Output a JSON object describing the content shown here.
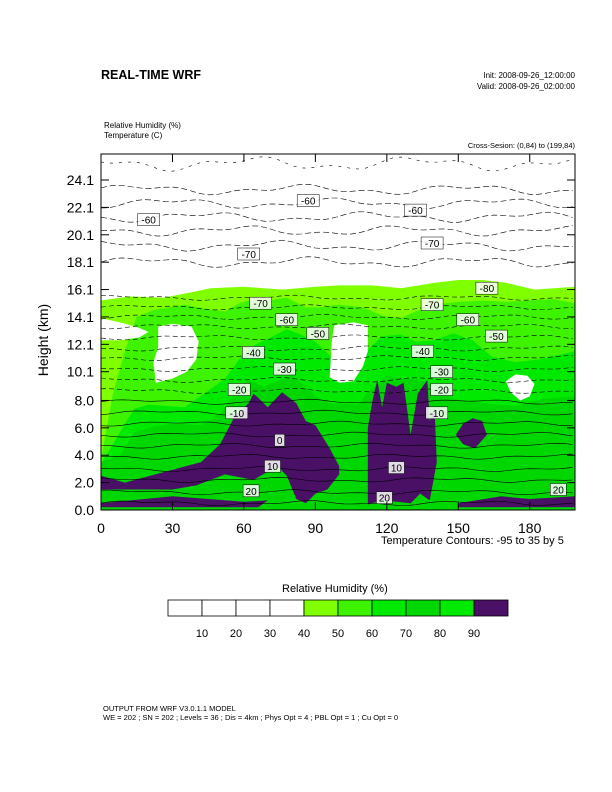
{
  "header": {
    "title": "REAL-TIME WRF",
    "init": "Init: 2008-09-26_12:00:00",
    "valid": "Valid: 2008-09-26_02:00:00",
    "field1": "Relative Humidity   (%)",
    "field2": "Temperature   (C)",
    "cross_section": "Cross-Sesion: (0,84) to (199,84)"
  },
  "chart_data": {
    "type": "heatmap",
    "ylabel": "Height (km)",
    "xlabel": "",
    "xlim": [
      0,
      199
    ],
    "ylim": [
      0,
      26
    ],
    "x_ticks": [
      "0",
      "30",
      "60",
      "90",
      "120",
      "150",
      "180"
    ],
    "x_tick_values": [
      0,
      30,
      60,
      90,
      120,
      150,
      180
    ],
    "y_ticks": [
      "0.0",
      "2.0",
      "4.0",
      "6.0",
      "8.0",
      "10.1",
      "12.1",
      "14.1",
      "16.1",
      "18.1",
      "20.1",
      "22.1",
      "24.1"
    ],
    "y_tick_values": [
      0.0,
      2.0,
      4.0,
      6.0,
      8.0,
      10.1,
      12.1,
      14.1,
      16.1,
      18.1,
      20.1,
      22.1,
      24.1
    ],
    "contour_note": "Temperature Contours: -95 to 35 by 5",
    "rh_regions": [
      {
        "level": 90,
        "color": "#4a1066",
        "polygon": [
          [
            0,
            2.5
          ],
          [
            10,
            2
          ],
          [
            25,
            2.7
          ],
          [
            42,
            3.5
          ],
          [
            50,
            4.8
          ],
          [
            56,
            6.8
          ],
          [
            62,
            7.8
          ],
          [
            64,
            8.5
          ],
          [
            66,
            8.2
          ],
          [
            70,
            7.5
          ],
          [
            76,
            8.6
          ],
          [
            82,
            7.8
          ],
          [
            86,
            6.5
          ],
          [
            90,
            6.2
          ],
          [
            96,
            4.5
          ],
          [
            100,
            3.2
          ],
          [
            100,
            2.6
          ],
          [
            95,
            1.5
          ],
          [
            90,
            1.2
          ],
          [
            86,
            0.5
          ],
          [
            82,
            0.8
          ],
          [
            78,
            2.5
          ],
          [
            74,
            3.2
          ],
          [
            70,
            2.8
          ],
          [
            64,
            2.2
          ],
          [
            52,
            2.6
          ],
          [
            40,
            1.8
          ],
          [
            30,
            1.5
          ],
          [
            15,
            1.5
          ],
          [
            0,
            1.5
          ]
        ]
      },
      {
        "level": 90,
        "color": "#4a1066",
        "polygon": [
          [
            112,
            0.4
          ],
          [
            112,
            6
          ],
          [
            114,
            8
          ],
          [
            116,
            9.5
          ],
          [
            118,
            7.5
          ],
          [
            120,
            9.3
          ],
          [
            124,
            9
          ],
          [
            127,
            9.3
          ],
          [
            130,
            5.5
          ],
          [
            133,
            8.5
          ],
          [
            137,
            9.5
          ],
          [
            138,
            6.5
          ],
          [
            140,
            7.5
          ],
          [
            141,
            3.5
          ],
          [
            138,
            0.7
          ],
          [
            134,
            1.2
          ],
          [
            130,
            0.5
          ],
          [
            124,
            0.6
          ],
          [
            118,
            0.7
          ]
        ]
      },
      {
        "level": 90,
        "color": "#4a1066",
        "polygon": [
          [
            0,
            0.5
          ],
          [
            30,
            1.0
          ],
          [
            60,
            0.6
          ],
          [
            70,
            0.7
          ],
          [
            66,
            0.2
          ],
          [
            0,
            0.2
          ]
        ]
      },
      {
        "level": 90,
        "color": "#4a1066",
        "polygon": [
          [
            150,
            0.5
          ],
          [
            168,
            1.0
          ],
          [
            180,
            0.8
          ],
          [
            199,
            1.0
          ],
          [
            199,
            0.2
          ],
          [
            150,
            0.2
          ]
        ]
      },
      {
        "level": 90,
        "color": "#4a1066",
        "polygon": [
          [
            149,
            5.5
          ],
          [
            152,
            6.3
          ],
          [
            156,
            6.7
          ],
          [
            160,
            6.5
          ],
          [
            162,
            5.5
          ],
          [
            157,
            4.5
          ],
          [
            152,
            4.8
          ]
        ]
      },
      {
        "level": 80,
        "color": "#00d600",
        "polygon": [
          [
            0,
            3.5
          ],
          [
            8,
            4
          ],
          [
            14,
            5.7
          ],
          [
            22,
            6.1
          ],
          [
            30,
            6.3
          ],
          [
            42,
            6.2
          ],
          [
            50,
            7.0
          ],
          [
            56,
            8.5
          ],
          [
            62,
            9.5
          ],
          [
            68,
            9.0
          ],
          [
            80,
            9.8
          ],
          [
            86,
            9.0
          ],
          [
            90,
            8.3
          ],
          [
            96,
            7.8
          ],
          [
            108,
            7.7
          ],
          [
            112,
            8.6
          ],
          [
            120,
            9.8
          ],
          [
            128,
            9.6
          ],
          [
            136,
            9.4
          ],
          [
            142,
            8.6
          ],
          [
            150,
            8.0
          ],
          [
            160,
            7.8
          ],
          [
            175,
            7.6
          ],
          [
            185,
            8.1
          ],
          [
            199,
            8.3
          ],
          [
            199,
            0
          ],
          [
            0,
            0
          ]
        ]
      },
      {
        "level": 70,
        "color": "#00ea00",
        "polygon": [
          [
            0,
            3.4
          ],
          [
            4,
            4.5
          ],
          [
            8,
            5.7
          ],
          [
            14,
            7.4
          ],
          [
            20,
            7.7
          ],
          [
            35,
            7.5
          ],
          [
            45,
            8.7
          ],
          [
            52,
            9.6
          ],
          [
            58,
            11.0
          ],
          [
            64,
            12.0
          ],
          [
            70,
            12.5
          ],
          [
            78,
            13.2
          ],
          [
            84,
            12.8
          ],
          [
            90,
            12.3
          ],
          [
            96,
            11.3
          ],
          [
            100,
            10.4
          ],
          [
            108,
            10.5
          ],
          [
            112,
            11.7
          ],
          [
            118,
            12.7
          ],
          [
            126,
            12.8
          ],
          [
            132,
            12.3
          ],
          [
            140,
            12.4
          ],
          [
            148,
            12.9
          ],
          [
            156,
            12.4
          ],
          [
            164,
            11.2
          ],
          [
            174,
            10.8
          ],
          [
            184,
            11.0
          ],
          [
            199,
            11.6
          ],
          [
            199,
            0
          ],
          [
            0,
            0
          ]
        ]
      },
      {
        "level": 60,
        "color": "#3ef300",
        "polygon": [
          [
            0,
            3.7
          ],
          [
            5,
            8.5
          ],
          [
            10,
            11.6
          ],
          [
            15,
            14.1
          ],
          [
            22,
            14.6
          ],
          [
            35,
            15.0
          ],
          [
            44,
            14.7
          ],
          [
            52,
            14.5
          ],
          [
            58,
            15.1
          ],
          [
            62,
            15.3
          ],
          [
            70,
            15.3
          ],
          [
            78,
            15.5
          ],
          [
            86,
            14.8
          ],
          [
            92,
            14.8
          ],
          [
            100,
            15.0
          ],
          [
            110,
            14.8
          ],
          [
            118,
            14.2
          ],
          [
            126,
            14.0
          ],
          [
            132,
            14.5
          ],
          [
            140,
            15.0
          ],
          [
            150,
            15.2
          ],
          [
            160,
            15.3
          ],
          [
            170,
            15.2
          ],
          [
            180,
            15.3
          ],
          [
            190,
            15.4
          ],
          [
            199,
            15.1
          ],
          [
            199,
            0
          ],
          [
            0,
            0
          ]
        ]
      },
      {
        "level": 50,
        "color": "#80ff00",
        "polygon": [
          [
            0,
            15.3
          ],
          [
            12,
            15.6
          ],
          [
            26,
            15.5
          ],
          [
            38,
            15.9
          ],
          [
            46,
            16.2
          ],
          [
            60,
            16.3
          ],
          [
            76,
            16.1
          ],
          [
            90,
            16.3
          ],
          [
            100,
            16.4
          ],
          [
            114,
            16.4
          ],
          [
            120,
            16.3
          ],
          [
            126,
            16.2
          ],
          [
            140,
            16.6
          ],
          [
            150,
            16.8
          ],
          [
            160,
            16.8
          ],
          [
            170,
            16.6
          ],
          [
            182,
            16.1
          ],
          [
            199,
            16.3
          ],
          [
            199,
            0
          ],
          [
            0,
            0
          ]
        ]
      },
      {
        "level": 10,
        "color": "#ffffff",
        "polygon": [
          [
            23,
            9.3
          ],
          [
            30,
            9.6
          ],
          [
            36,
            10.1
          ],
          [
            40,
            11.0
          ],
          [
            41,
            12.3
          ],
          [
            38,
            13.4
          ],
          [
            30,
            13.6
          ],
          [
            24,
            13.4
          ],
          [
            24,
            11.9
          ],
          [
            22,
            10.8
          ]
        ]
      },
      {
        "level": 10,
        "color": "#ffffff",
        "polygon": [
          [
            96,
            9.7
          ],
          [
            100,
            9.3
          ],
          [
            106,
            9.4
          ],
          [
            110,
            10.5
          ],
          [
            112,
            11.6
          ],
          [
            112,
            13.5
          ],
          [
            106,
            13.7
          ],
          [
            98,
            13.5
          ],
          [
            97,
            12.5
          ]
        ]
      },
      {
        "level": 10,
        "color": "#ffffff",
        "polygon": [
          [
            0,
            12.4
          ],
          [
            8,
            12.4
          ],
          [
            16,
            12.6
          ],
          [
            20,
            13.0
          ],
          [
            16,
            13.3
          ],
          [
            8,
            13.7
          ],
          [
            0,
            14.0
          ]
        ]
      },
      {
        "level": 10,
        "color": "#ffffff",
        "polygon": [
          [
            170,
            9.4
          ],
          [
            172,
            8.6
          ],
          [
            176,
            8.0
          ],
          [
            180,
            8.3
          ],
          [
            182,
            9.2
          ],
          [
            179,
            9.8
          ],
          [
            174,
            9.9
          ]
        ]
      },
      {
        "level": 10,
        "color": "#ffffff",
        "polygon": [
          [
            0,
            16.3
          ],
          [
            50,
            16.6
          ],
          [
            100,
            16.6
          ],
          [
            150,
            16.9
          ],
          [
            199,
            16.6
          ],
          [
            199,
            26
          ],
          [
            0,
            26
          ]
        ]
      }
    ],
    "temperature_contour_labels": [
      {
        "text": "-60",
        "x": 20,
        "y": 21.2
      },
      {
        "text": "-60",
        "x": 87,
        "y": 22.6
      },
      {
        "text": "-60",
        "x": 132,
        "y": 21.9
      },
      {
        "text": "-70",
        "x": 62,
        "y": 18.7
      },
      {
        "text": "-70",
        "x": 139,
        "y": 19.5
      },
      {
        "text": "-80",
        "x": 162,
        "y": 16.2
      },
      {
        "text": "-70",
        "x": 67,
        "y": 15.1
      },
      {
        "text": "-70",
        "x": 139,
        "y": 15.0
      },
      {
        "text": "-60",
        "x": 78,
        "y": 13.9
      },
      {
        "text": "-60",
        "x": 154,
        "y": 13.9
      },
      {
        "text": "-50",
        "x": 91,
        "y": 12.9
      },
      {
        "text": "-50",
        "x": 166,
        "y": 12.7
      },
      {
        "text": "-40",
        "x": 64,
        "y": 11.5
      },
      {
        "text": "-40",
        "x": 135,
        "y": 11.6
      },
      {
        "text": "-30",
        "x": 77,
        "y": 10.3
      },
      {
        "text": "-30",
        "x": 143,
        "y": 10.1
      },
      {
        "text": "-20",
        "x": 58,
        "y": 8.8
      },
      {
        "text": "-20",
        "x": 143,
        "y": 8.8
      },
      {
        "text": "-10",
        "x": 57,
        "y": 7.1
      },
      {
        "text": "-10",
        "x": 141,
        "y": 7.1
      },
      {
        "text": "0",
        "x": 75,
        "y": 5.1
      },
      {
        "text": "10",
        "x": 72,
        "y": 3.2
      },
      {
        "text": "10",
        "x": 124,
        "y": 3.1
      },
      {
        "text": "20",
        "x": 63,
        "y": 1.4
      },
      {
        "text": "20",
        "x": 119,
        "y": 0.9
      },
      {
        "text": "20",
        "x": 192,
        "y": 1.5
      }
    ],
    "temperature_contour_levels_km": [
      0.5,
      1.3,
      2.2,
      3.0,
      3.9,
      4.7,
      5.5,
      6.3,
      7.1,
      7.9,
      8.7,
      9.5,
      10.3,
      11.1,
      11.8,
      12.6,
      13.4,
      14.1,
      14.8,
      15.5
    ],
    "upper_dashed_levels_km": [
      18.1,
      19.3,
      20.4,
      21.4,
      22.4,
      23.4
    ]
  },
  "colorbar": {
    "title": "Relative Humidity  (%)",
    "colors": [
      "#ffffff",
      "#ffffff",
      "#ffffff",
      "#ffffff",
      "#80ff00",
      "#3ef300",
      "#00ea00",
      "#00d600",
      "#00ea00",
      "#4a1066"
    ],
    "labels": [
      "10",
      "20",
      "30",
      "40",
      "50",
      "60",
      "70",
      "80",
      "90"
    ]
  },
  "footer": {
    "line1": "OUTPUT FROM WRF V3.0.1.1 MODEL",
    "line2": "WE = 202 ; SN = 202 ; Levels = 36 ; Dis = 4km ; Phys Opt = 4 ; PBL Opt = 1 ; Cu Opt = 0"
  }
}
